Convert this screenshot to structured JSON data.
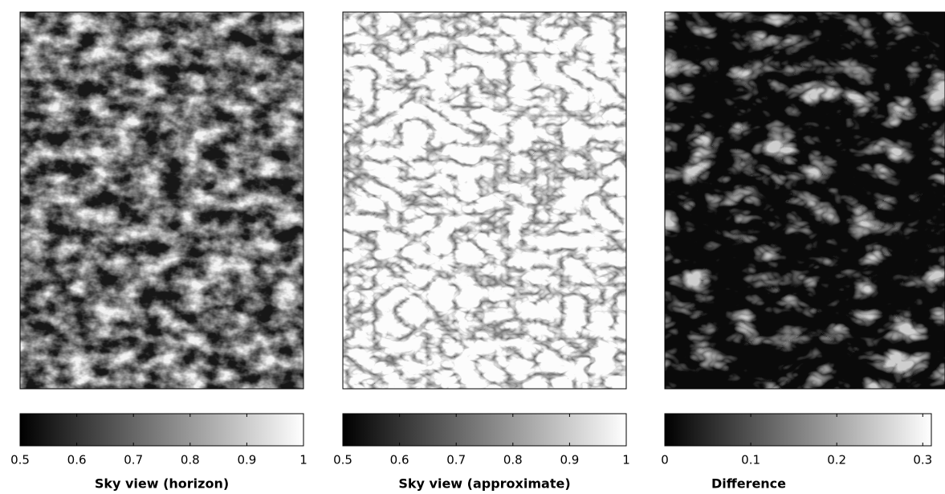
{
  "chart_data": [
    {
      "type": "image",
      "title": "Sky view (horizon)",
      "xlim": [
        0.5,
        1
      ],
      "xticks": [
        0.5,
        0.6,
        0.7,
        0.8,
        0.9,
        1
      ]
    },
    {
      "type": "image",
      "title": "Sky view (approximate)",
      "xlim": [
        0.5,
        1
      ],
      "xticks": [
        0.5,
        0.6,
        0.7,
        0.8,
        0.9,
        1
      ]
    },
    {
      "type": "image",
      "title": "Difference",
      "xlim": [
        0,
        0.31
      ],
      "xticks": [
        0,
        0.1,
        0.2,
        0.3
      ]
    }
  ]
}
